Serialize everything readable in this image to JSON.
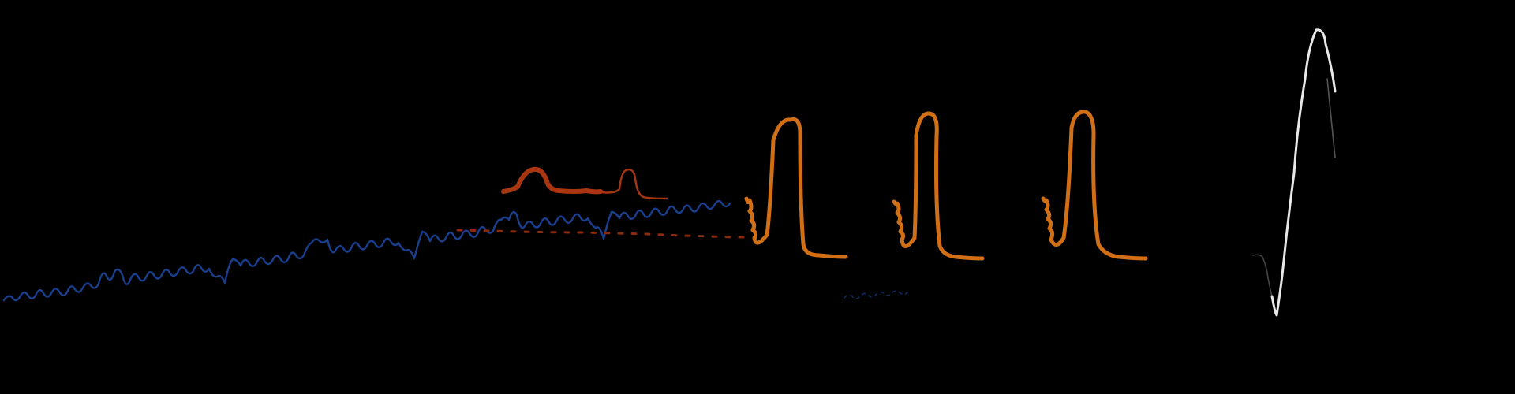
{
  "colors": {
    "background": "#000000",
    "baseline_wave": "#1a3f8f",
    "dim_trail": "#8a2a0e",
    "small_hump": "#a83610",
    "tall_peaks": "#d06f15",
    "spike": "#e8e8e8"
  }
}
